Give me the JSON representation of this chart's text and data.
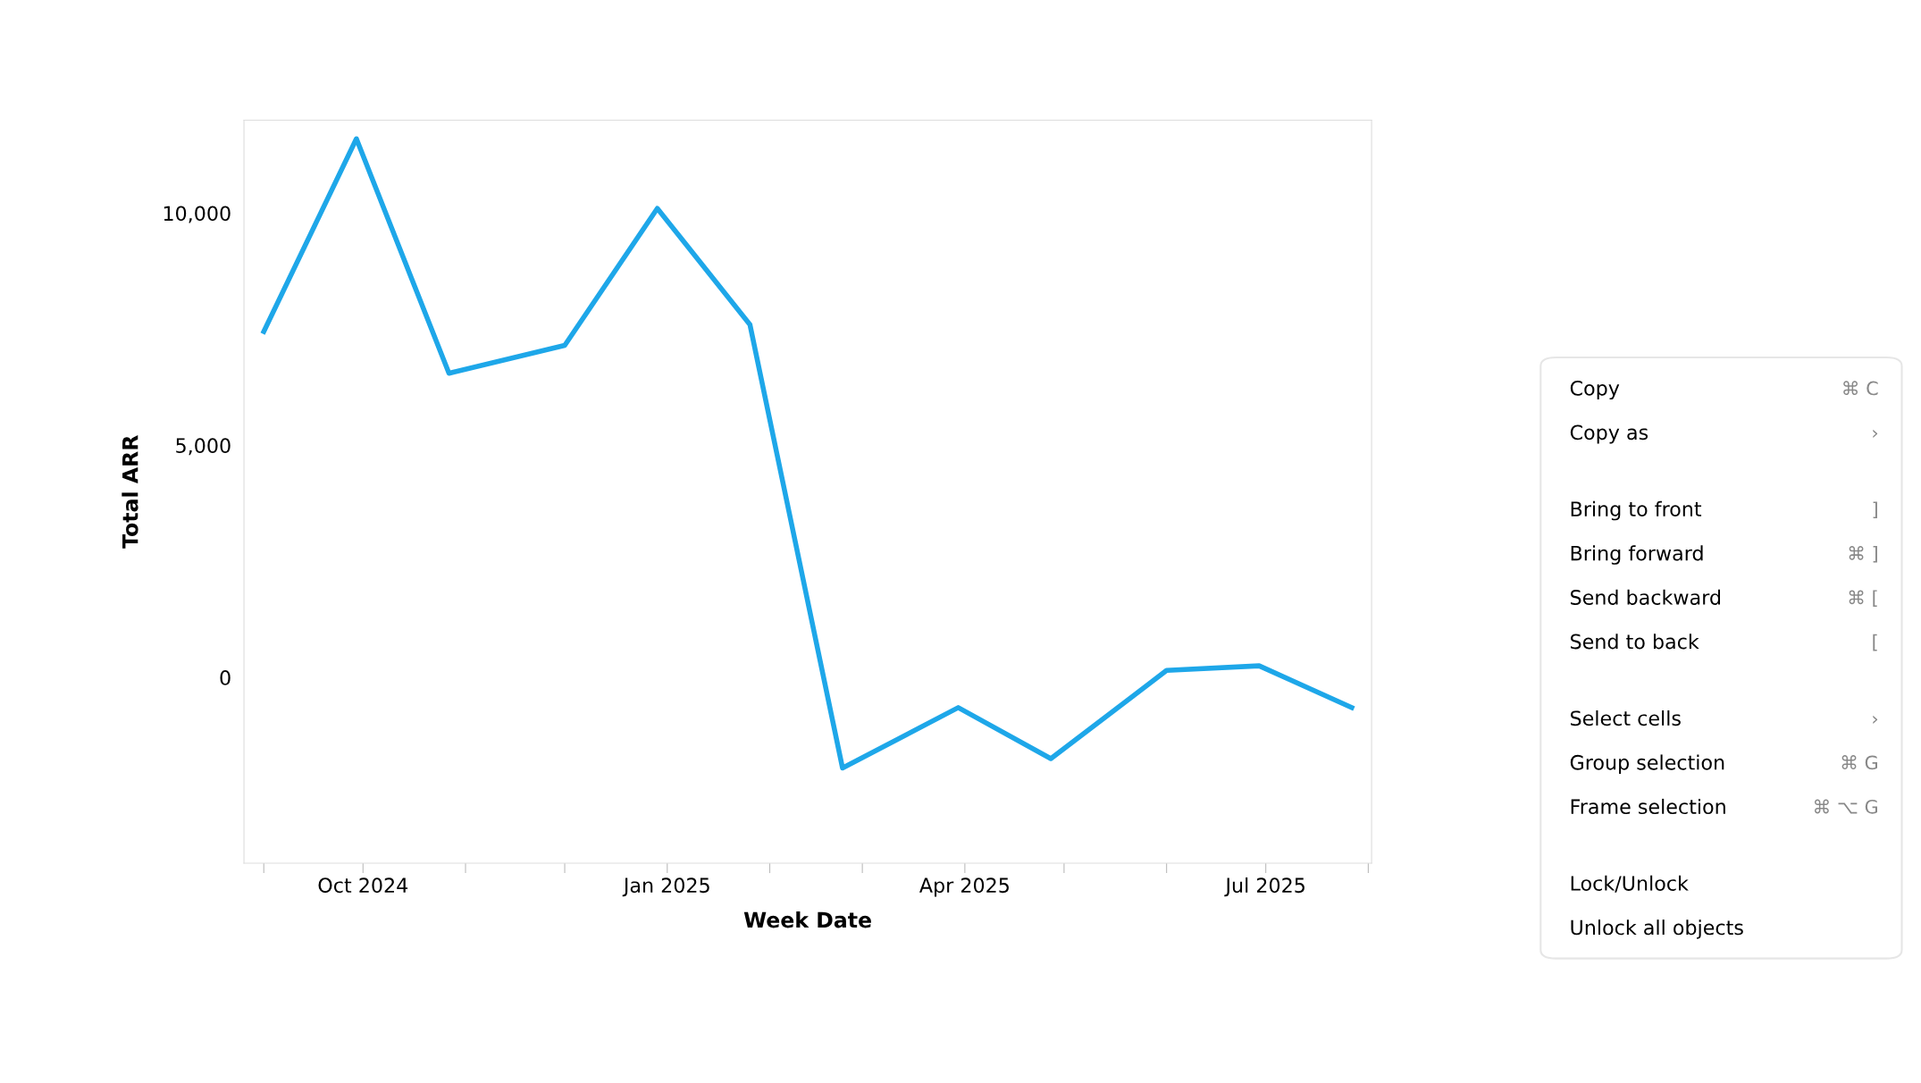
{
  "chart_data": {
    "type": "line",
    "xlabel": "Week Date",
    "ylabel": "Total ARR",
    "x": [
      "2024-09-01",
      "2024-09-29",
      "2024-10-27",
      "2024-12-01",
      "2024-12-29",
      "2025-01-26",
      "2025-02-23",
      "2025-03-30",
      "2025-04-27",
      "2025-06-01",
      "2025-06-29",
      "2025-07-27"
    ],
    "series": [
      {
        "color": "#1ea7e9",
        "values": [
          7450,
          11600,
          6550,
          7150,
          10100,
          7600,
          -1950,
          -650,
          -1750,
          150,
          250,
          -650
        ]
      }
    ],
    "xlim": [
      "2024-08-26",
      "2025-08-02"
    ],
    "xticks": [
      {
        "value": "2024-09-01",
        "label": null
      },
      {
        "value": "2024-10-01",
        "label": "Oct 2024"
      },
      {
        "value": "2024-11-01",
        "label": null
      },
      {
        "value": "2024-12-01",
        "label": null
      },
      {
        "value": "2025-01-01",
        "label": "Jan 2025"
      },
      {
        "value": "2025-02-01",
        "label": null
      },
      {
        "value": "2025-03-01",
        "label": null
      },
      {
        "value": "2025-04-01",
        "label": "Apr 2025"
      },
      {
        "value": "2025-05-01",
        "label": null
      },
      {
        "value": "2025-06-01",
        "label": null
      },
      {
        "value": "2025-07-01",
        "label": "Jul 2025"
      },
      {
        "value": "2025-08-01",
        "label": null
      }
    ],
    "ylim": [
      -4000,
      12000
    ],
    "yticks": [
      {
        "value": 0,
        "label": "0"
      },
      {
        "value": 5000,
        "label": "5,000"
      },
      {
        "value": 10000,
        "label": "10,000"
      }
    ],
    "grid": false,
    "legend": false,
    "marker": "none",
    "line_style": "solid",
    "annotations": [
      "Copy\t⌘ C",
      "Copy as\t›",
      "Bring to front\t]",
      "Bring forward\t⌘ ]",
      "Send backward\t⌘ [",
      "Send to back\t[",
      "Select cells\t›",
      "Group selection\t⌘ G",
      "Frame selection\t⌘ ⌥ G",
      "Lock/Unlock",
      "Unlock all objects"
    ]
  }
}
